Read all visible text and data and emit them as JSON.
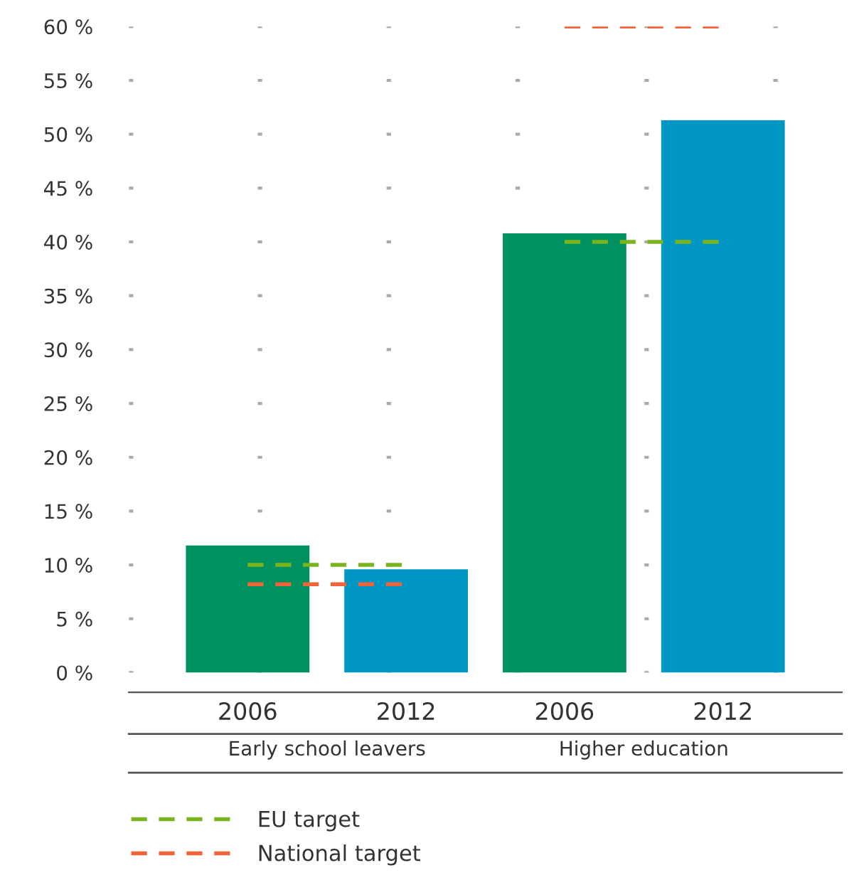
{
  "chart_data": {
    "type": "bar",
    "categories": [
      "2006",
      "2012",
      "2006",
      "2012"
    ],
    "colors": [
      "#009160",
      "#0097c4",
      "#009160",
      "#0097c4"
    ],
    "values": [
      11.8,
      9.6,
      40.8,
      51.3
    ],
    "series": [
      {
        "name": "EU target",
        "type": "step",
        "color": "#7ab51d",
        "line_style": "dashed",
        "values": [
          10,
          10,
          40,
          40
        ]
      },
      {
        "name": "National target",
        "type": "step",
        "color": "#f0643c",
        "line_style": "dashed",
        "values": [
          8.2,
          8.2,
          60,
          60
        ]
      }
    ],
    "annotations": [
      "Early school leavers",
      "Higher education"
    ],
    "ylim": [
      0,
      60
    ],
    "yticks": [
      {
        "value": 0,
        "label": "0 %"
      },
      {
        "value": 5,
        "label": "5 %"
      },
      {
        "value": 10,
        "label": "10 %"
      },
      {
        "value": 15,
        "label": "15 %"
      },
      {
        "value": 20,
        "label": "20 %"
      },
      {
        "value": 25,
        "label": "25 %"
      },
      {
        "value": 30,
        "label": "30 %"
      },
      {
        "value": 35,
        "label": "35 %"
      },
      {
        "value": 40,
        "label": "40 %"
      },
      {
        "value": 45,
        "label": "45 %"
      },
      {
        "value": 50,
        "label": "50 %"
      },
      {
        "value": 55,
        "label": "55 %"
      },
      {
        "value": 60,
        "label": "60 %"
      }
    ],
    "grid": "y",
    "legend": "bottom left"
  }
}
